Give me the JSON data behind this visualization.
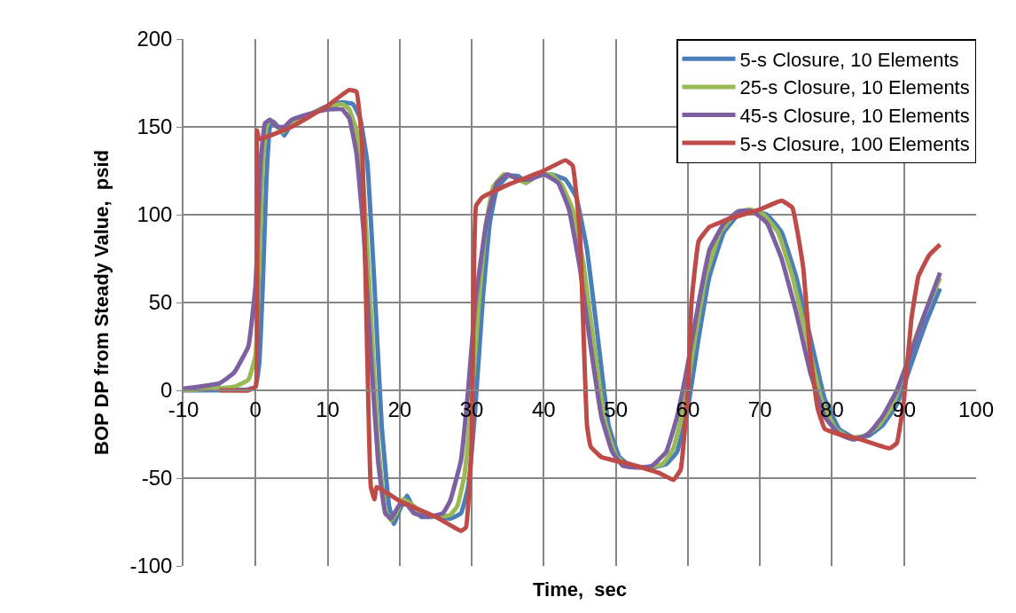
{
  "chart_data": {
    "type": "line",
    "xlabel": "Time,  sec",
    "ylabel": "BOP DP from Steady Value,  psid",
    "xlim": [
      -10,
      100
    ],
    "xticks": [
      -10,
      0,
      10,
      20,
      30,
      40,
      50,
      60,
      70,
      80,
      90,
      100
    ],
    "ylim": [
      -100,
      200
    ],
    "yticks": [
      -100,
      -50,
      0,
      50,
      100,
      150,
      200
    ],
    "grid": true,
    "legend": "top right",
    "marker": "none",
    "line_style": "solid",
    "series": [
      {
        "name": "5-s Closure, 10 Elements",
        "color": "#4a7ebb",
        "x": [
          -10,
          -1,
          0,
          0.5,
          1,
          1.5,
          2,
          2.5,
          3.5,
          4,
          5,
          6,
          8,
          10,
          12,
          13.5,
          14.5,
          15.5,
          16.5,
          17.5,
          18.5,
          19.2,
          20,
          21,
          22,
          23,
          25,
          27,
          28.5,
          29.5,
          30.5,
          31.5,
          32.5,
          33.5,
          35,
          36.5,
          37.5,
          39,
          41,
          43,
          44.5,
          46,
          47.5,
          49,
          50.5,
          52,
          55,
          57,
          58.5,
          60,
          61.5,
          63,
          65,
          67,
          69,
          71,
          73,
          75,
          77,
          79,
          81,
          83,
          85,
          87,
          89,
          91,
          93,
          95
        ],
        "values": [
          0,
          0.5,
          2,
          15,
          60,
          120,
          150,
          153,
          148,
          145,
          152,
          153,
          158,
          162,
          164,
          163,
          155,
          130,
          60,
          -20,
          -65,
          -76,
          -68,
          -60,
          -68,
          -72,
          -72,
          -73,
          -70,
          -55,
          -10,
          50,
          95,
          115,
          122,
          122,
          118,
          122,
          123,
          120,
          110,
          80,
          30,
          -20,
          -38,
          -43,
          -44,
          -42,
          -35,
          -10,
          30,
          65,
          90,
          100,
          102,
          100,
          90,
          65,
          30,
          -5,
          -22,
          -27,
          -26,
          -20,
          -8,
          15,
          38,
          58
        ]
      },
      {
        "name": "25-s Closure, 10 Elements",
        "color": "#98b954",
        "x": [
          -10,
          -3,
          -1,
          0,
          0.5,
          1,
          1.5,
          2,
          3,
          3.8,
          5,
          6,
          8,
          10,
          12,
          13,
          14,
          15,
          16,
          17,
          18,
          18.8,
          19.5,
          20.5,
          22,
          23,
          25,
          27,
          28,
          29,
          30,
          31,
          32,
          33,
          34.5,
          36,
          37.5,
          39,
          41,
          42.5,
          44,
          45.5,
          47,
          48.5,
          50,
          51.5,
          54,
          56.5,
          58,
          59.5,
          61,
          62.5,
          64.5,
          66.5,
          68.5,
          70.5,
          72.5,
          74.5,
          76.5,
          78.5,
          80.5,
          82.5,
          84.5,
          86.5,
          88.5,
          90.5,
          92.5,
          95
        ],
        "values": [
          0,
          2,
          6,
          20,
          70,
          130,
          150,
          154,
          150,
          147,
          153,
          154,
          158,
          161,
          163,
          160,
          148,
          115,
          45,
          -30,
          -68,
          -74,
          -70,
          -62,
          -66,
          -71,
          -72,
          -71,
          -66,
          -48,
          -5,
          50,
          95,
          116,
          123,
          121,
          118,
          122,
          123,
          117,
          103,
          72,
          25,
          -18,
          -37,
          -43,
          -44,
          -42,
          -33,
          -8,
          30,
          65,
          90,
          100,
          103,
          100,
          90,
          65,
          30,
          -5,
          -22,
          -27,
          -26,
          -20,
          -8,
          17,
          40,
          64
        ]
      },
      {
        "name": "45-s Closure, 10 Elements",
        "color": "#7d60a0",
        "x": [
          -10,
          -5,
          -3,
          -1,
          0,
          0.7,
          1.3,
          2,
          3,
          4,
          5,
          8,
          10,
          12,
          13,
          14,
          15,
          16,
          17,
          18,
          18.8,
          20,
          21,
          22,
          24,
          26,
          27,
          28.5,
          29.5,
          30.5,
          32,
          33.5,
          35,
          36.5,
          38,
          40,
          42,
          43.5,
          45,
          46.5,
          48,
          49.5,
          51,
          53,
          55,
          57,
          58.5,
          60,
          61.5,
          63,
          65,
          67,
          69,
          71,
          73,
          75,
          77,
          79,
          81,
          83,
          85,
          87,
          89,
          91,
          93,
          95
        ],
        "values": [
          1,
          4,
          10,
          25,
          60,
          130,
          152,
          154,
          150,
          150,
          154,
          158,
          160,
          160,
          155,
          135,
          90,
          20,
          -40,
          -70,
          -73,
          -65,
          -65,
          -70,
          -72,
          -70,
          -63,
          -40,
          0,
          50,
          95,
          118,
          123,
          120,
          120,
          123,
          118,
          103,
          70,
          25,
          -15,
          -35,
          -43,
          -44,
          -43,
          -35,
          -15,
          15,
          50,
          80,
          95,
          102,
          102,
          95,
          75,
          45,
          10,
          -15,
          -25,
          -28,
          -25,
          -15,
          0,
          22,
          45,
          67
        ]
      },
      {
        "name": "5-s Closure, 100 Elements",
        "color": "#be4b48",
        "x": [
          -5,
          -1,
          0,
          0.2,
          0.5,
          5,
          10,
          13,
          14,
          14.8,
          15.5,
          16,
          16.5,
          16.8,
          20,
          25,
          28.5,
          29.2,
          30,
          30.6,
          31.5,
          35,
          40,
          43,
          44,
          45,
          46,
          46.5,
          48,
          52,
          56,
          58,
          59,
          60,
          60.5,
          61.5,
          63,
          66,
          70,
          73,
          74.5,
          76,
          77,
          78,
          79,
          81,
          84,
          88,
          89,
          90,
          91,
          92,
          93.5,
          95
        ],
        "values": [
          0,
          0,
          2,
          148,
          143,
          150,
          162,
          171,
          170,
          140,
          20,
          -55,
          -62,
          -55,
          -63,
          -72,
          -80,
          -78,
          -30,
          105,
          110,
          117,
          125,
          131,
          128,
          90,
          -20,
          -32,
          -38,
          -42,
          -47,
          -51,
          -45,
          0,
          50,
          85,
          93,
          98,
          103,
          108,
          104,
          70,
          20,
          -10,
          -22,
          -25,
          -28,
          -33,
          -30,
          -5,
          40,
          65,
          77,
          83
        ]
      }
    ]
  }
}
